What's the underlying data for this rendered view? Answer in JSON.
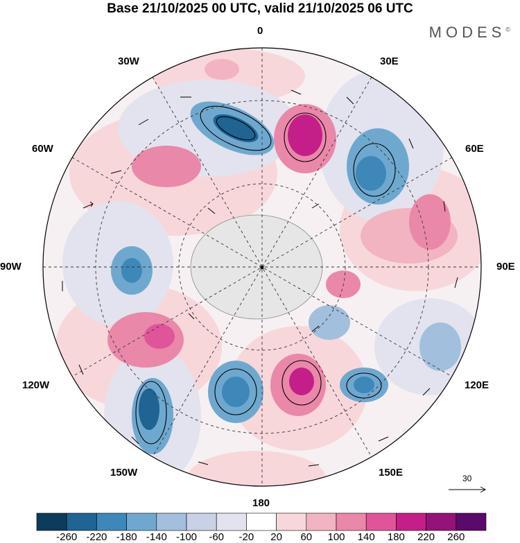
{
  "header": {
    "title": "Base 21/10/2025 00 UTC, valid 21/10/2025 06 UTC",
    "brand": "MODES",
    "brand_mark": "©"
  },
  "map": {
    "projection": "south-polar-stereographic",
    "longitude_labels": {
      "top": "0",
      "top_right": "30E",
      "right_upper": "60E",
      "right": "90E",
      "right_lower": "120E",
      "bottom_right": "150E",
      "bottom": "180",
      "bottom_left": "150W",
      "left_lower": "120W",
      "left": "90W",
      "left_upper": "60W",
      "top_left": "30W"
    },
    "vector_scale": {
      "value": "30"
    }
  },
  "colorbar": {
    "colors": [
      "#0d3b5c",
      "#1f6493",
      "#3d88b8",
      "#6fa8cf",
      "#a2bfdd",
      "#c8d1e5",
      "#e2e3ee",
      "#ffffff",
      "#f8d7da",
      "#f2b4c0",
      "#ea88a9",
      "#e0559a",
      "#c41f88",
      "#951278",
      "#5a0a6a"
    ],
    "labels": [
      "-260",
      "-220",
      "-180",
      "-140",
      "-100",
      "-60",
      "-20",
      "20",
      "60",
      "100",
      "140",
      "180",
      "220",
      "260"
    ]
  }
}
